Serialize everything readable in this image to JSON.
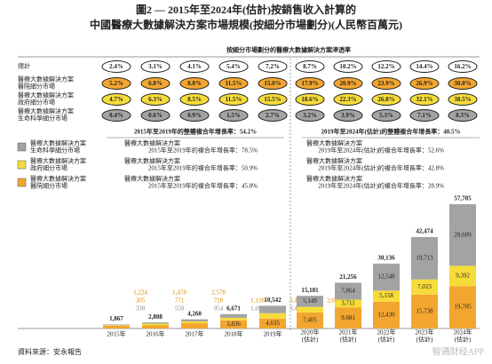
{
  "chart_data": {
    "type": "stacked-bar",
    "title": "圖2 — 2015年至2024年(估計)按銷售收入計算的",
    "subtitle": "中國醫療大數據解決方案市場規模(按細分市場劃分)(人民幣百萬元)",
    "categories": [
      "2015年",
      "2016年",
      "2017年",
      "2018年",
      "2019年",
      [
        "2020年",
        "(估計)"
      ],
      [
        "2021年",
        "(估計)"
      ],
      [
        "2022年",
        "(估計)"
      ],
      [
        "2023年",
        "(估計)"
      ],
      [
        "2024年",
        "(估計)"
      ]
    ],
    "series": [
      {
        "name": [
          "醫療大數據解決方案",
          "醫院細分市場"
        ],
        "color": "#f2a630",
        "values": [
          1224,
          1478,
          2578,
          3836,
          4635,
          7405,
          9681,
          12430,
          15738,
          19705
        ],
        "value_labels": [
          "1,224",
          "1,478",
          "2,578",
          "3,836",
          "4,635",
          "7,405",
          "9,681",
          "12,430",
          "15,738",
          "19,705"
        ]
      },
      {
        "name": [
          "醫療大數據解決方案",
          "政府細分市場"
        ],
        "color": "#f6dc3a",
        "values": [
          305,
          771,
          728,
          1138,
          2456,
          2627,
          3711,
          5158,
          7023,
          9392
        ],
        "value_labels": [
          "305",
          "771",
          "728",
          "1,138",
          "2,456",
          "2,627",
          "3,711",
          "5,158",
          "7,023",
          "9,392"
        ]
      },
      {
        "name": [
          "醫療大數據解決方案",
          "生命科學細分市場"
        ],
        "color": "#a3a3a3",
        "values": [
          338,
          559,
          954,
          1697,
          3451,
          5149,
          7864,
          12548,
          19713,
          28609
        ],
        "value_labels": [
          "338",
          "559",
          "954",
          "1,697",
          "3,451",
          "5,149",
          "7,864",
          "12,548",
          "19,713",
          "28,609"
        ]
      }
    ],
    "totals": [
      1867,
      2808,
      4260,
      6671,
      10542,
      15181,
      21256,
      30136,
      42474,
      57705
    ],
    "total_labels": [
      "1,867",
      "2,808",
      "4,260",
      "6,671",
      "10,542",
      "15,181",
      "21,256",
      "30,136",
      "42,474",
      "57,705"
    ],
    "penetration": {
      "title": "按細分市場劃分的醫療大數據解決方案滲透率",
      "rows": [
        {
          "name": [
            "總計"
          ],
          "color": "#ffffff",
          "values": [
            2.4,
            3.1,
            4.1,
            5.4,
            7.2,
            8.7,
            10.2,
            12.2,
            14.4,
            16.2
          ],
          "value_labels": [
            "2.4%",
            "3.1%",
            "4.1%",
            "5.4%",
            "7.2%",
            "8.7%",
            "10.2%",
            "12.2%",
            "14.4%",
            "16.2%"
          ]
        },
        {
          "name": [
            "醫療大數據解決方案",
            "醫院細分市場"
          ],
          "color": "#f2a630",
          "values": [
            5.2,
            6.8,
            8.8,
            11.5,
            15.0,
            17.9,
            20.9,
            23.9,
            26.9,
            30.0
          ],
          "value_labels": [
            "5.2%",
            "6.8%",
            "8.8%",
            "11.5%",
            "15.0%",
            "17.9%",
            "20.9%",
            "23.9%",
            "26.9%",
            "30.0%"
          ]
        },
        {
          "name": [
            "醫療大數據解決方案",
            "政府細分市場"
          ],
          "color": "#f6dc3a",
          "values": [
            4.7,
            6.3,
            8.5,
            11.5,
            15.5,
            18.6,
            22.3,
            26.8,
            32.1,
            38.5
          ],
          "value_labels": [
            "4.7%",
            "6.3%",
            "8.5%",
            "11.5%",
            "15.5%",
            "18.6%",
            "22.3%",
            "26.8%",
            "32.1%",
            "38.5%"
          ]
        },
        {
          "name": [
            "醫療大數據解決方案",
            "生命科學細分市場"
          ],
          "color": "#a3a3a3",
          "values": [
            0.4,
            0.6,
            0.9,
            1.5,
            2.7,
            3.2,
            3.9,
            5.3,
            7.1,
            8.3
          ],
          "value_labels": [
            "0.4%",
            "0.6%",
            "0.9%",
            "1.5%",
            "2.7%",
            "3.2%",
            "3.9%",
            "5.3%",
            "7.1%",
            "8.3%"
          ]
        }
      ]
    },
    "cagr": [
      {
        "overall": "2015年至2019年的整體複合年增長率：54.2%",
        "lines": [
          "2015年至2019年的複合年增長率：78.5%",
          "2015年至2019年的複合年增長率：50.9%",
          "2015年至2019年的複合年增長率：45.8%"
        ]
      },
      {
        "overall": "2019年至2024年(估計)的整體複合年增長率：40.5%",
        "lines": [
          "2019年至2024年(估計)的複合年增長率：52.6%",
          "2019年至2024年(估計)的複合年增長率：42.8%",
          "2019年至2024年(估計)的複合年增長率：28.9%"
        ]
      }
    ],
    "source": "資料來源：安永報告",
    "watermark": "智通财经APP"
  }
}
